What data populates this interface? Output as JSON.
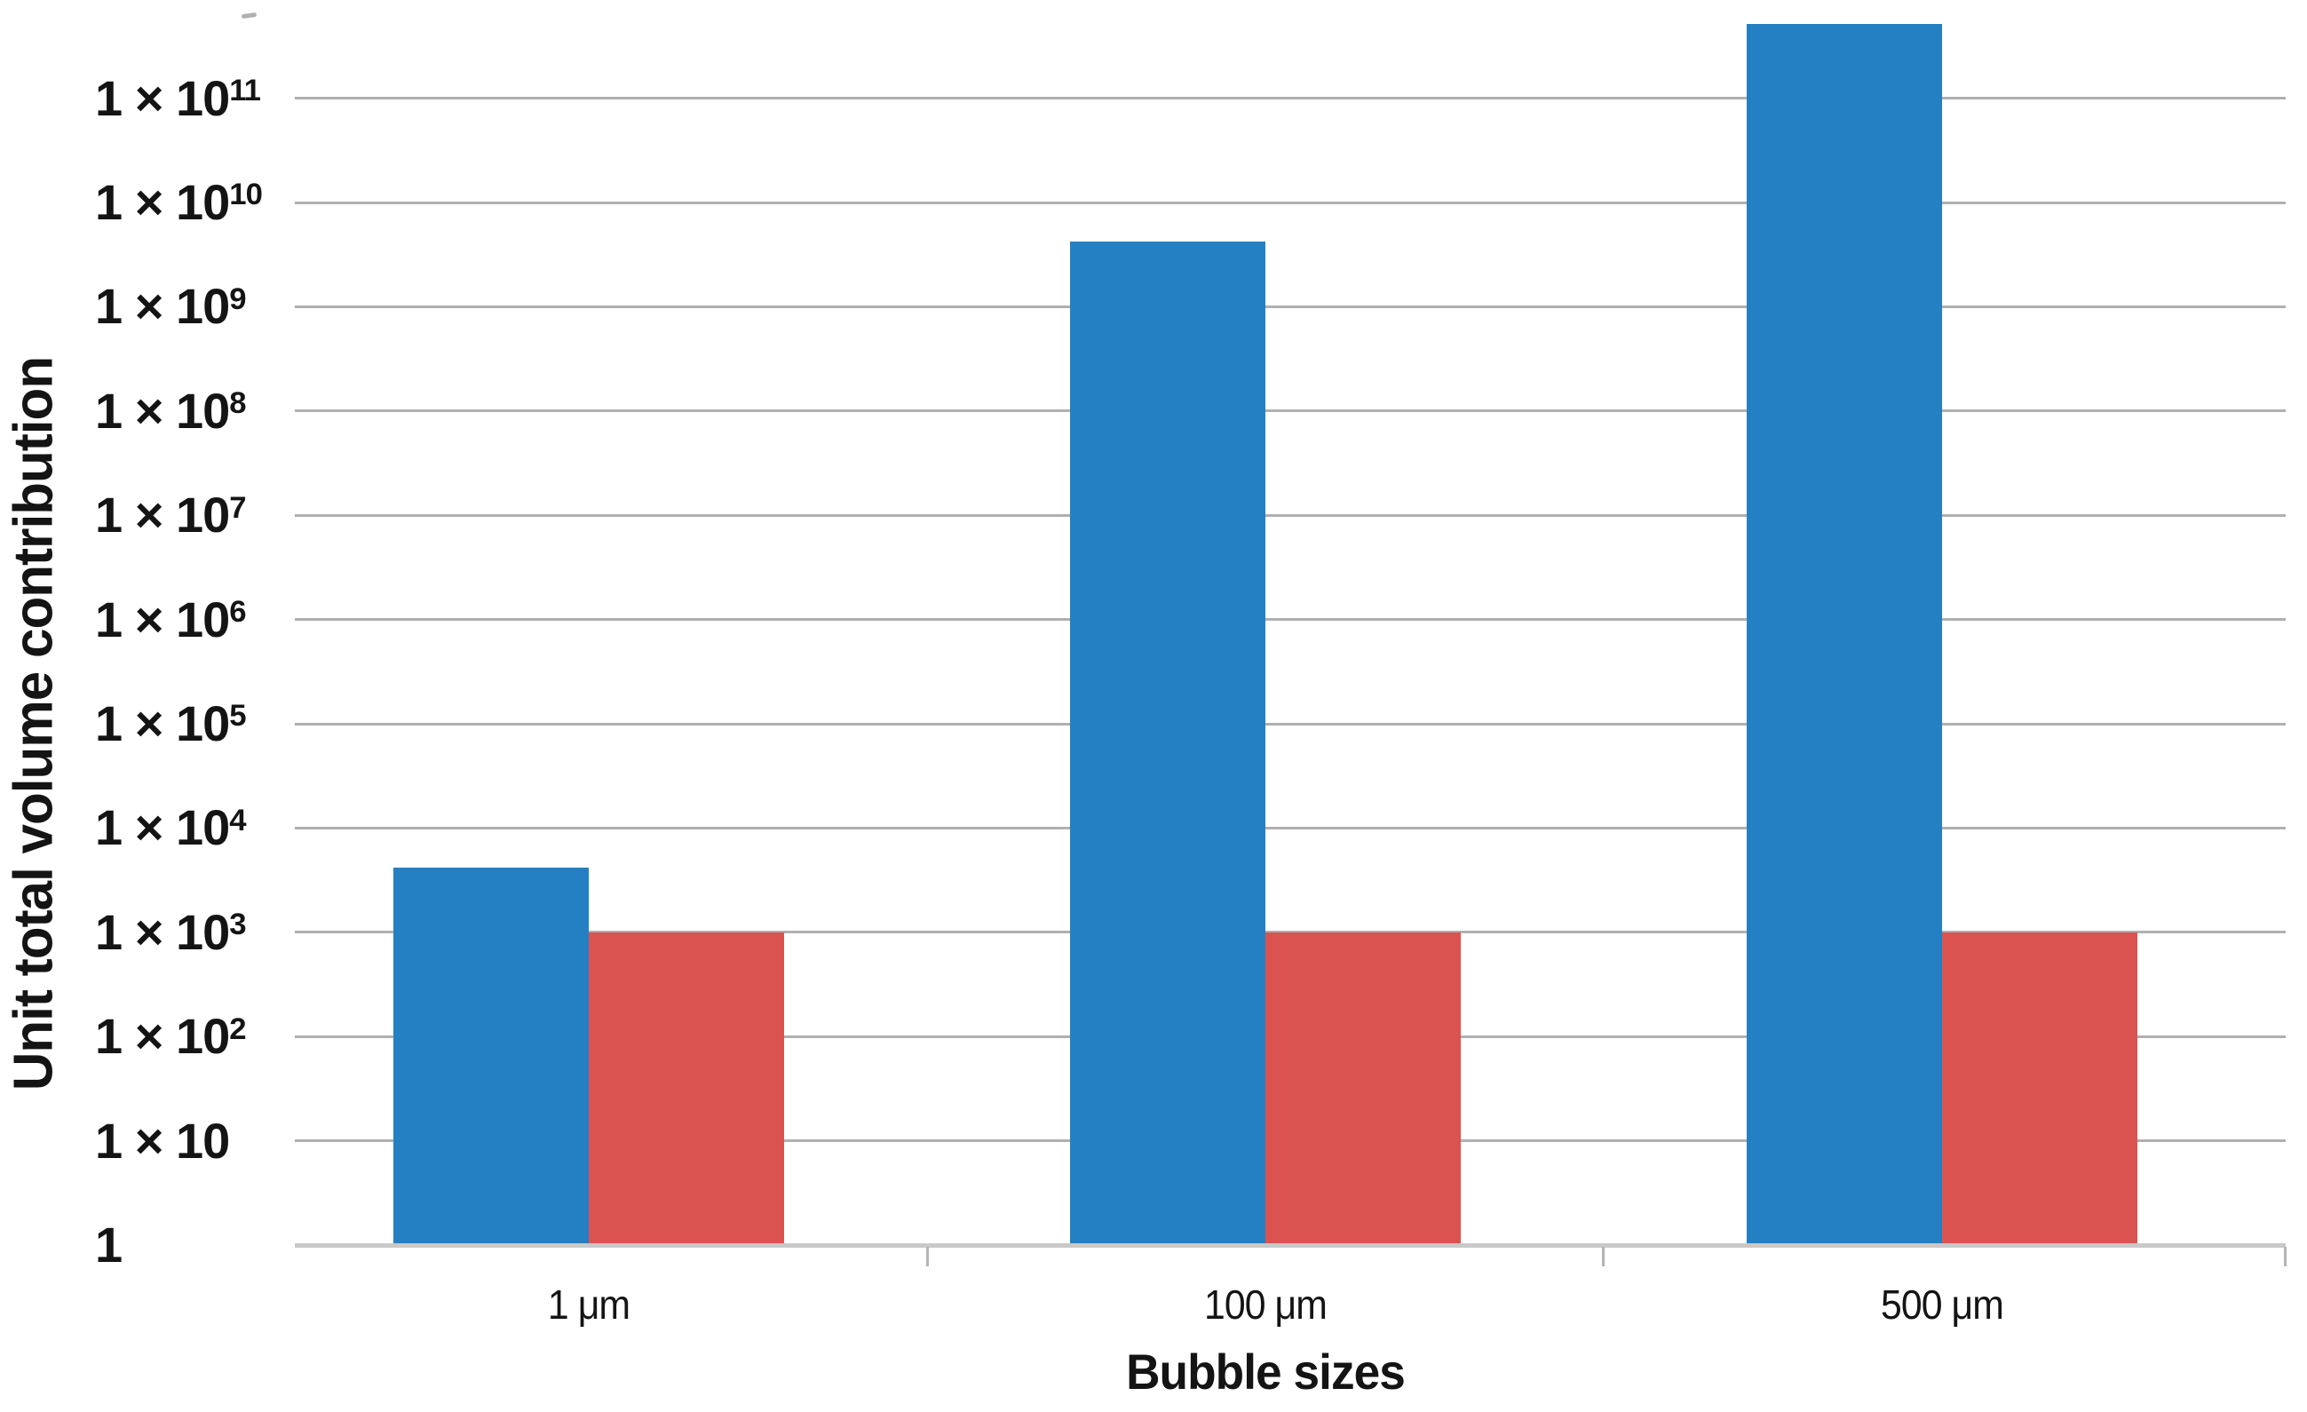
{
  "chart_data": {
    "type": "bar",
    "title": "",
    "xlabel": "Bubble sizes",
    "ylabel": "Unit total volume contribution",
    "y_scale": "log10",
    "y_range": [
      1,
      1000000000000
    ],
    "grid": "horizontal-only",
    "legend": "none",
    "categories": [
      "1 μm",
      "100 μm",
      "500 μm"
    ],
    "series": [
      {
        "name": "series-blue",
        "color": "#2480c2",
        "values": [
          4200,
          4200000000,
          520000000000
        ]
      },
      {
        "name": "series-red",
        "color": "#da5351",
        "values": [
          1000,
          1000,
          1000
        ]
      }
    ],
    "y_ticks": [
      {
        "base": "1 × 10",
        "sup": "11",
        "value": 100000000000
      },
      {
        "base": "1 × 10",
        "sup": "10",
        "value": 10000000000
      },
      {
        "base": "1 × 10",
        "sup": "9",
        "value": 1000000000
      },
      {
        "base": "1 × 10",
        "sup": "8",
        "value": 100000000
      },
      {
        "base": "1 × 10",
        "sup": "7",
        "value": 10000000
      },
      {
        "base": "1 × 10",
        "sup": "6",
        "value": 1000000
      },
      {
        "base": "1 × 10",
        "sup": "5",
        "value": 100000
      },
      {
        "base": "1 × 10",
        "sup": "4",
        "value": 10000
      },
      {
        "base": "1 × 10",
        "sup": "3",
        "value": 1000
      },
      {
        "base": "1 × 10",
        "sup": "2",
        "value": 100
      },
      {
        "base": "1 × 10",
        "sup": "",
        "value": 10
      },
      {
        "base": "1",
        "sup": "",
        "value": 1
      }
    ],
    "colors": {
      "gridline": "#b0b0b0",
      "axis_line": "#c9c9c9",
      "tick_mark": "#b5b5b5",
      "text": "#141414"
    }
  }
}
